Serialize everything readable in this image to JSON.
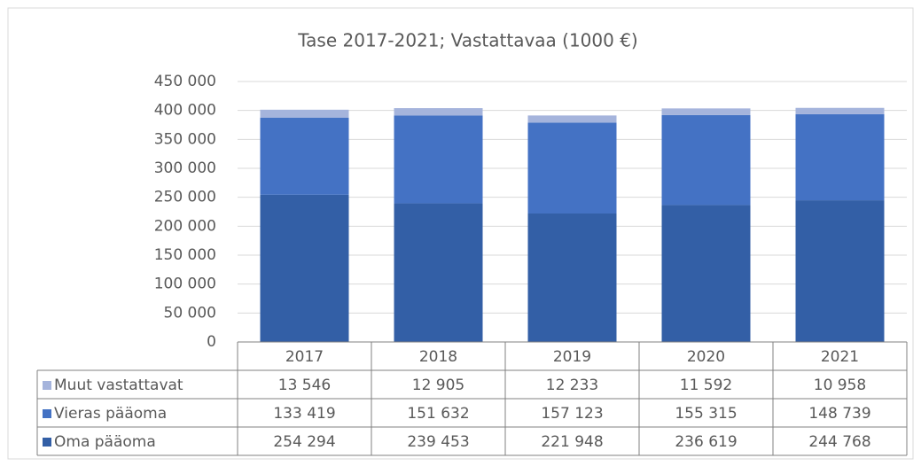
{
  "chart_data": {
    "type": "stacked_bar",
    "title": "Tase 2017-2021; Vastattavaa (1000 €)",
    "categories": [
      "2017",
      "2018",
      "2019",
      "2020",
      "2021"
    ],
    "series": [
      {
        "name": "Muut vastattavat",
        "color": "#a5b4dc",
        "values": [
          13546,
          12905,
          12233,
          11592,
          10958
        ],
        "value_labels": [
          "13 546",
          "12 905",
          "12 233",
          "11 592",
          "10 958"
        ]
      },
      {
        "name": "Vieras pääoma",
        "color": "#4472c4",
        "values": [
          133419,
          151632,
          157123,
          155315,
          148739
        ],
        "value_labels": [
          "133 419",
          "151 632",
          "157 123",
          "155 315",
          "148 739"
        ]
      },
      {
        "name": "Oma pääoma",
        "color": "#335fa6",
        "values": [
          254294,
          239453,
          221948,
          236619,
          244768
        ],
        "value_labels": [
          "254 294",
          "239 453",
          "221 948",
          "236 619",
          "244 768"
        ]
      }
    ],
    "ylim": [
      0,
      450000
    ],
    "yticks": [
      0,
      {
        "value": 50000,
        "label": "50 000"
      },
      {
        "value": 100000,
        "label": "100 000"
      },
      {
        "value": 150000,
        "label": "150 000"
      },
      {
        "value": 200000,
        "label": "200 000"
      },
      {
        "value": 250000,
        "label": "250 000"
      },
      {
        "value": 300000,
        "label": "300 000"
      },
      {
        "value": 350000,
        "label": "350 000"
      },
      {
        "value": 400000,
        "label": "400 000"
      },
      {
        "value": 450000,
        "label": "450 000"
      }
    ],
    "grid": true
  }
}
